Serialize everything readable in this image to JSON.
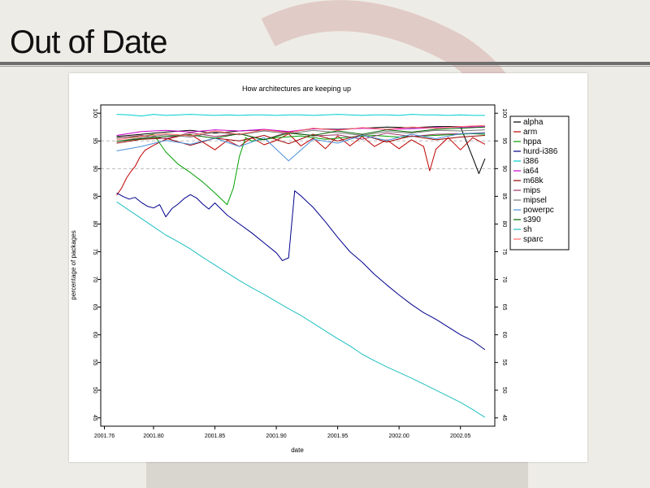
{
  "slide": {
    "title": "Out of Date"
  },
  "chart_data": {
    "type": "line",
    "title": "How architectures are keeping up",
    "xlabel": "date",
    "ylabel": "percentage of packages",
    "xlim": [
      2001.757,
      2002.078
    ],
    "ylim": [
      43.5,
      101.5
    ],
    "x_ticks": [
      2001.76,
      2001.8,
      2001.85,
      2001.9,
      2001.95,
      2002.0,
      2002.05
    ],
    "x_tick_labels": [
      "2001.76",
      "2001.80",
      "2001.85",
      "2001.90",
      "2001.95",
      "2002.00",
      "2002.05"
    ],
    "y_ticks": [
      45,
      50,
      55,
      60,
      65,
      70,
      75,
      80,
      85,
      90,
      95,
      100
    ],
    "y_tick_labels": [
      "45",
      "50",
      "55",
      "60",
      "65",
      "70",
      "75",
      "80",
      "85",
      "90",
      "95",
      "100"
    ],
    "reference_lines": [
      90,
      95
    ],
    "legend_position": "right",
    "series": [
      {
        "name": "alpha",
        "color": "#000000",
        "x": [
          2001.77,
          2001.79,
          2001.81,
          2001.83,
          2001.85,
          2001.87,
          2001.89,
          2001.91,
          2001.93,
          2001.95,
          2001.97,
          2001.99,
          2002.01,
          2002.03,
          2002.05,
          2002.06,
          2002.065,
          2002.07
        ],
        "values": [
          95.8,
          96.2,
          96.6,
          96.9,
          96.4,
          96.8,
          97.0,
          96.6,
          97.2,
          97.1,
          97.3,
          97.5,
          97.4,
          97.6,
          97.6,
          92.0,
          89.1,
          91.8
        ]
      },
      {
        "name": "arm",
        "color": "#c00000",
        "x": [
          2001.77,
          2001.774,
          2001.778,
          2001.782,
          2001.785,
          2001.789,
          2001.793,
          2001.8,
          2001.81,
          2001.82,
          2001.83,
          2001.84,
          2001.85,
          2001.86,
          2001.87,
          2001.88,
          2001.89,
          2001.9,
          2001.91,
          2001.92,
          2001.93,
          2001.94,
          2001.95,
          2001.96,
          2001.97,
          2001.98,
          2001.99,
          2002.0,
          2002.01,
          2002.02,
          2002.025,
          2002.03,
          2002.04,
          2002.05,
          2002.06,
          2002.07
        ],
        "values": [
          85.2,
          86.5,
          88.3,
          89.6,
          90.4,
          92.1,
          93.3,
          94.2,
          95.3,
          95.8,
          96.2,
          94.8,
          93.4,
          95.1,
          94.0,
          95.6,
          94.3,
          95.1,
          96.3,
          94.1,
          95.5,
          93.6,
          95.9,
          94.1,
          95.8,
          94.0,
          95.2,
          93.6,
          95.2,
          94.0,
          89.6,
          93.5,
          95.6,
          93.4,
          95.6,
          94.4
        ]
      },
      {
        "name": "hppa",
        "color": "#00a000",
        "x": [
          2001.77,
          2001.79,
          2001.8,
          2001.81,
          2001.82,
          2001.83,
          2001.84,
          2001.85,
          2001.86,
          2001.865,
          2001.87,
          2001.875,
          2001.88,
          2001.9,
          2001.92,
          2001.94,
          2001.96,
          2001.98,
          2002.0,
          2002.02,
          2002.04,
          2002.06,
          2002.07
        ],
        "values": [
          95.6,
          95.8,
          96.2,
          93.0,
          90.8,
          89.3,
          87.6,
          85.6,
          83.5,
          86.5,
          92.2,
          95.6,
          95.0,
          95.6,
          95.9,
          95.3,
          95.7,
          96.0,
          95.7,
          95.9,
          96.1,
          96.3,
          96.2
        ]
      },
      {
        "name": "hurd-i386",
        "color": "#00008b",
        "x": [
          2001.77,
          2001.775,
          2001.78,
          2001.785,
          2001.79,
          2001.795,
          2001.8,
          2001.805,
          2001.81,
          2001.815,
          2001.82,
          2001.825,
          2001.83,
          2001.835,
          2001.84,
          2001.845,
          2001.85,
          2001.86,
          2001.87,
          2001.88,
          2001.89,
          2001.9,
          2001.905,
          2001.91,
          2001.915,
          2001.92,
          2001.93,
          2001.94,
          2001.95,
          2001.96,
          2001.97,
          2001.98,
          2001.99,
          2002.0,
          2002.01,
          2002.02,
          2002.03,
          2002.04,
          2002.05,
          2002.06,
          2002.07
        ],
        "values": [
          85.6,
          85.0,
          84.5,
          84.8,
          83.9,
          83.2,
          82.9,
          83.5,
          81.3,
          82.8,
          83.6,
          84.6,
          85.3,
          84.7,
          83.6,
          82.7,
          83.8,
          81.6,
          80.0,
          78.4,
          76.6,
          74.8,
          73.4,
          73.9,
          86.0,
          85.1,
          83.0,
          80.4,
          77.6,
          75.0,
          73.1,
          70.9,
          69.0,
          67.2,
          65.5,
          64.0,
          62.8,
          61.4,
          60.0,
          58.9,
          57.3
        ]
      },
      {
        "name": "i386",
        "color": "#00cccc",
        "x": [
          2001.77,
          2001.78,
          2001.79,
          2001.8,
          2001.81,
          2001.82,
          2001.83,
          2001.84,
          2001.85,
          2001.86,
          2001.87,
          2001.88,
          2001.89,
          2001.9,
          2001.91,
          2001.92,
          2001.93,
          2001.94,
          2001.95,
          2001.96,
          2001.97,
          2001.98,
          2001.99,
          2002.0,
          2002.01,
          2002.02,
          2002.03,
          2002.04,
          2002.05,
          2002.06,
          2002.07
        ],
        "values": [
          99.8,
          99.7,
          99.5,
          99.8,
          99.6,
          99.7,
          99.8,
          99.7,
          99.6,
          99.7,
          99.6,
          99.7,
          99.7,
          99.6,
          99.7,
          99.7,
          99.6,
          99.7,
          99.8,
          99.7,
          99.6,
          99.7,
          99.7,
          99.6,
          99.8,
          99.7,
          99.7,
          99.6,
          99.7,
          99.6,
          99.6
        ]
      },
      {
        "name": "ia64",
        "color": "#cc00cc",
        "x": [
          2001.77,
          2001.79,
          2001.81,
          2001.83,
          2001.85,
          2001.87,
          2001.89,
          2001.91,
          2001.93,
          2001.95,
          2001.97,
          2001.99,
          2002.01,
          2002.03,
          2002.05,
          2002.07
        ],
        "values": [
          96.0,
          96.7,
          96.9,
          96.6,
          97.0,
          96.8,
          97.1,
          96.7,
          97.2,
          97.0,
          97.3,
          97.1,
          97.2,
          97.4,
          97.5,
          97.6
        ]
      },
      {
        "name": "m68k",
        "color": "#990000",
        "x": [
          2001.77,
          2001.79,
          2001.81,
          2001.83,
          2001.85,
          2001.87,
          2001.89,
          2001.91,
          2001.93,
          2001.95,
          2001.97,
          2001.99,
          2002.01,
          2002.03,
          2002.05,
          2002.07
        ],
        "values": [
          94.6,
          95.3,
          95.5,
          94.2,
          95.5,
          95.0,
          96.0,
          94.5,
          96.2,
          95.0,
          96.1,
          94.8,
          95.9,
          95.2,
          95.7,
          96.0
        ]
      },
      {
        "name": "mips",
        "color": "#993366",
        "x": [
          2001.77,
          2001.79,
          2001.81,
          2001.83,
          2001.85,
          2001.87,
          2001.89,
          2001.91,
          2001.93,
          2001.95,
          2001.97,
          2001.99,
          2002.01,
          2002.03,
          2002.05,
          2002.07
        ],
        "values": [
          95.5,
          96.0,
          95.4,
          96.5,
          95.8,
          96.3,
          95.2,
          96.6,
          95.9,
          96.1,
          95.3,
          96.4,
          95.8,
          96.2,
          96.3,
          96.5
        ]
      },
      {
        "name": "mipsel",
        "color": "#777777",
        "x": [
          2001.77,
          2001.79,
          2001.81,
          2001.83,
          2001.85,
          2001.87,
          2001.89,
          2001.91,
          2001.93,
          2001.95,
          2001.97,
          2001.99,
          2002.01,
          2002.03,
          2002.05,
          2002.07
        ],
        "values": [
          94.9,
          95.6,
          96.1,
          95.7,
          96.6,
          96.1,
          96.8,
          96.3,
          96.9,
          96.5,
          96.0,
          96.7,
          96.4,
          96.9,
          96.8,
          97.0
        ]
      },
      {
        "name": "powerpc",
        "color": "#4a90d9",
        "x": [
          2001.77,
          2001.79,
          2001.81,
          2001.83,
          2001.85,
          2001.87,
          2001.89,
          2001.91,
          2001.93,
          2001.95,
          2001.97,
          2001.99,
          2002.01,
          2002.03,
          2002.05,
          2002.07
        ],
        "values": [
          93.2,
          94.0,
          95.1,
          94.4,
          95.5,
          94.0,
          95.6,
          91.4,
          95.3,
          94.6,
          96.0,
          95.1,
          96.2,
          95.4,
          96.3,
          96.4
        ]
      },
      {
        "name": "s390",
        "color": "#006400",
        "x": [
          2001.77,
          2001.79,
          2001.81,
          2001.83,
          2001.85,
          2001.87,
          2001.89,
          2001.91,
          2001.93,
          2001.95,
          2001.97,
          2001.99,
          2002.01,
          2002.03,
          2002.05,
          2002.07
        ],
        "values": [
          94.9,
          95.4,
          95.8,
          96.1,
          95.5,
          96.3,
          95.2,
          96.4,
          96.0,
          96.8,
          96.2,
          97.0,
          96.6,
          97.1,
          97.3,
          97.5
        ]
      },
      {
        "name": "sh",
        "color": "#20c0c0",
        "x": [
          2001.77,
          2001.78,
          2001.79,
          2001.8,
          2001.81,
          2001.82,
          2001.83,
          2001.84,
          2001.85,
          2001.86,
          2001.87,
          2001.88,
          2001.89,
          2001.9,
          2001.91,
          2001.92,
          2001.93,
          2001.94,
          2001.95,
          2001.96,
          2001.97,
          2001.98,
          2001.99,
          2002.0,
          2002.01,
          2002.02,
          2002.03,
          2002.04,
          2002.05,
          2002.06,
          2002.07
        ],
        "values": [
          84.0,
          82.5,
          81.0,
          79.5,
          78.0,
          76.8,
          75.5,
          74.0,
          72.6,
          71.2,
          69.8,
          68.5,
          67.3,
          66.0,
          64.7,
          63.5,
          62.1,
          60.7,
          59.3,
          58.0,
          56.5,
          55.3,
          54.2,
          53.2,
          52.2,
          51.1,
          50.0,
          48.9,
          47.8,
          46.5,
          45.1
        ]
      },
      {
        "name": "sparc",
        "color": "#ff6666",
        "x": [
          2001.77,
          2001.79,
          2001.81,
          2001.83,
          2001.85,
          2001.87,
          2001.89,
          2001.91,
          2001.93,
          2001.95,
          2001.97,
          2001.99,
          2002.01,
          2002.03,
          2002.05,
          2002.07
        ],
        "values": [
          95.2,
          95.8,
          96.3,
          95.9,
          96.8,
          96.2,
          97.0,
          96.5,
          97.3,
          96.9,
          97.4,
          97.1,
          97.5,
          97.3,
          97.6,
          97.8
        ]
      }
    ]
  }
}
